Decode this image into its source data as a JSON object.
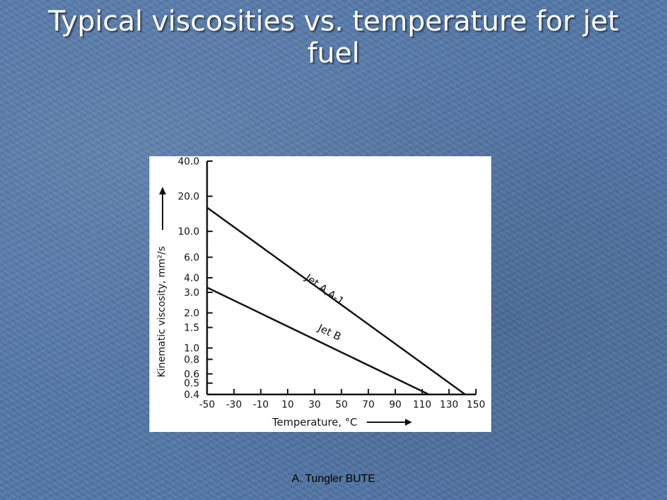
{
  "slide": {
    "title": "Typical viscosities vs. temperature for jet fuel",
    "footer": "A. Tungler BUTE"
  },
  "colors": {
    "background": "#5478a8",
    "title": "#ffffff",
    "figure_background": "#ffffff",
    "ink": "#111111"
  },
  "chart_data": {
    "type": "line",
    "xlabel": "Temperature, °C",
    "ylabel": "Kinematic viscosity, mm²/s",
    "x_ticks": [
      -50,
      -30,
      -10,
      10,
      30,
      50,
      70,
      90,
      110,
      130,
      150
    ],
    "y_ticks": [
      40.0,
      20.0,
      10.0,
      6.0,
      4.0,
      3.0,
      2.0,
      1.5,
      1.0,
      0.8,
      0.6,
      0.5,
      0.4
    ],
    "y_tick_labels": [
      "40.0",
      "20.0",
      "10.0",
      "6.0",
      "4.0",
      "3.0",
      "2.0",
      "1.5",
      "1.0",
      "0.8",
      "0.6",
      "0.5",
      "0.4"
    ],
    "xlim": [
      -50,
      150
    ],
    "ylim": [
      0.4,
      40.0
    ],
    "y_scale": "log",
    "grid": false,
    "legend": "none (curves labeled inline)",
    "series": [
      {
        "name": "Jet A,A-1",
        "x": [
          -50,
          142
        ],
        "y": [
          16.0,
          0.4
        ]
      },
      {
        "name": "Jet B",
        "x": [
          -50,
          115
        ],
        "y": [
          3.3,
          0.4
        ]
      }
    ]
  }
}
